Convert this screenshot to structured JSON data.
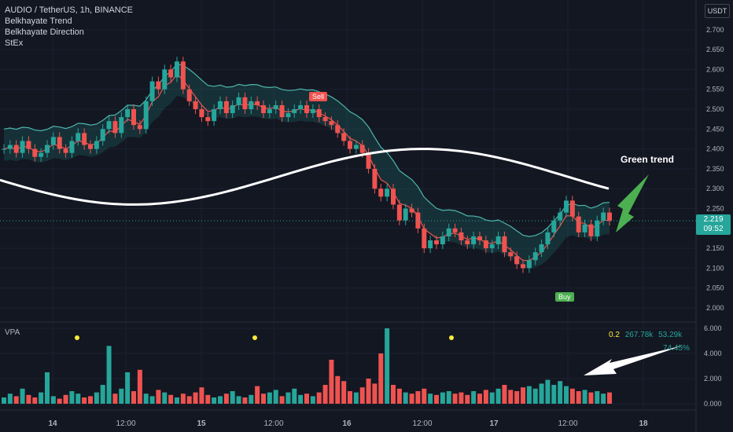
{
  "legend": {
    "symbol": "AUDIO / TetherUS, 1h, BINANCE",
    "ind1": "Belkhayate Trend",
    "ind2": "Belkhayate Direction",
    "ind3": "StEx"
  },
  "vpa_label": "VPA",
  "currency": "USDT",
  "last_price": "2.219",
  "countdown": "09:52",
  "vpa_stats": {
    "a": "0.2",
    "b": "267.78k",
    "c": "53.29k",
    "pct": "74.45%"
  },
  "annotations": {
    "green_trend": "Green trend",
    "sell": "Sell",
    "buy": "Buy"
  },
  "colors": {
    "up": "#26a69a",
    "down": "#ef5350",
    "bg": "#131722",
    "grid": "#1f2330"
  },
  "chart_data": [
    {
      "type": "candlestick",
      "title": "AUDIO / TetherUS, 1h, BINANCE",
      "ylim": [
        1.95,
        2.75
      ],
      "y_ticks": [
        "2.000",
        "2.050",
        "2.100",
        "2.150",
        "2.200",
        "2.250",
        "2.300",
        "2.350",
        "2.400",
        "2.450",
        "2.500",
        "2.550",
        "2.600",
        "2.650",
        "2.700"
      ],
      "x_ticks": [
        "14",
        "12:00",
        "15",
        "12:00",
        "16",
        "12:00",
        "17",
        "12:00",
        "18"
      ],
      "closes": [
        2.4,
        2.41,
        2.39,
        2.42,
        2.4,
        2.38,
        2.39,
        2.41,
        2.43,
        2.4,
        2.39,
        2.42,
        2.44,
        2.41,
        2.4,
        2.42,
        2.45,
        2.47,
        2.44,
        2.48,
        2.5,
        2.46,
        2.45,
        2.52,
        2.57,
        2.55,
        2.6,
        2.58,
        2.62,
        2.55,
        2.52,
        2.5,
        2.48,
        2.47,
        2.5,
        2.52,
        2.49,
        2.51,
        2.53,
        2.5,
        2.52,
        2.51,
        2.49,
        2.5,
        2.51,
        2.48,
        2.49,
        2.5,
        2.51,
        2.49,
        2.5,
        2.48,
        2.47,
        2.46,
        2.44,
        2.42,
        2.4,
        2.41,
        2.39,
        2.35,
        2.3,
        2.28,
        2.3,
        2.26,
        2.22,
        2.25,
        2.24,
        2.2,
        2.15,
        2.17,
        2.16,
        2.18,
        2.2,
        2.19,
        2.17,
        2.16,
        2.18,
        2.17,
        2.15,
        2.16,
        2.18,
        2.14,
        2.13,
        2.11,
        2.1,
        2.12,
        2.14,
        2.16,
        2.19,
        2.22,
        2.24,
        2.27,
        2.23,
        2.19,
        2.21,
        2.18,
        2.22,
        2.24,
        2.219
      ],
      "trend_curve_start": 2.31,
      "trend_curve_end": 2.31,
      "last_price": 2.219
    },
    {
      "type": "bar",
      "title": "VPA",
      "ylim": [
        0,
        6
      ],
      "y_ticks": [
        "0.000",
        "2.000",
        "4.000",
        "6.000"
      ],
      "values": [
        0.5,
        0.8,
        0.6,
        1.2,
        0.7,
        0.5,
        0.9,
        2.5,
        0.6,
        0.4,
        0.7,
        1.0,
        0.8,
        0.5,
        0.6,
        0.9,
        1.5,
        4.6,
        0.8,
        1.2,
        2.5,
        1.0,
        2.7,
        0.8,
        0.6,
        1.1,
        0.9,
        0.7,
        0.5,
        0.8,
        0.6,
        0.9,
        1.3,
        0.7,
        0.5,
        0.6,
        0.8,
        1.0,
        0.6,
        0.5,
        0.7,
        1.4,
        0.8,
        0.9,
        1.1,
        0.6,
        0.9,
        1.2,
        0.7,
        0.8,
        0.6,
        0.9,
        1.5,
        3.5,
        2.2,
        1.8,
        1.0,
        0.9,
        1.3,
        2.0,
        1.6,
        4.0,
        6.0,
        1.5,
        1.2,
        0.9,
        0.8,
        1.0,
        1.2,
        0.8,
        0.7,
        0.9,
        1.0,
        0.8,
        0.9,
        0.7,
        1.0,
        0.8,
        1.1,
        0.9,
        1.2,
        1.5,
        1.1,
        1.0,
        1.3,
        1.4,
        1.2,
        1.6,
        1.9,
        1.5,
        1.8,
        1.4,
        1.2,
        1.0,
        1.1,
        0.9,
        1.0,
        0.8,
        0.9
      ]
    }
  ]
}
